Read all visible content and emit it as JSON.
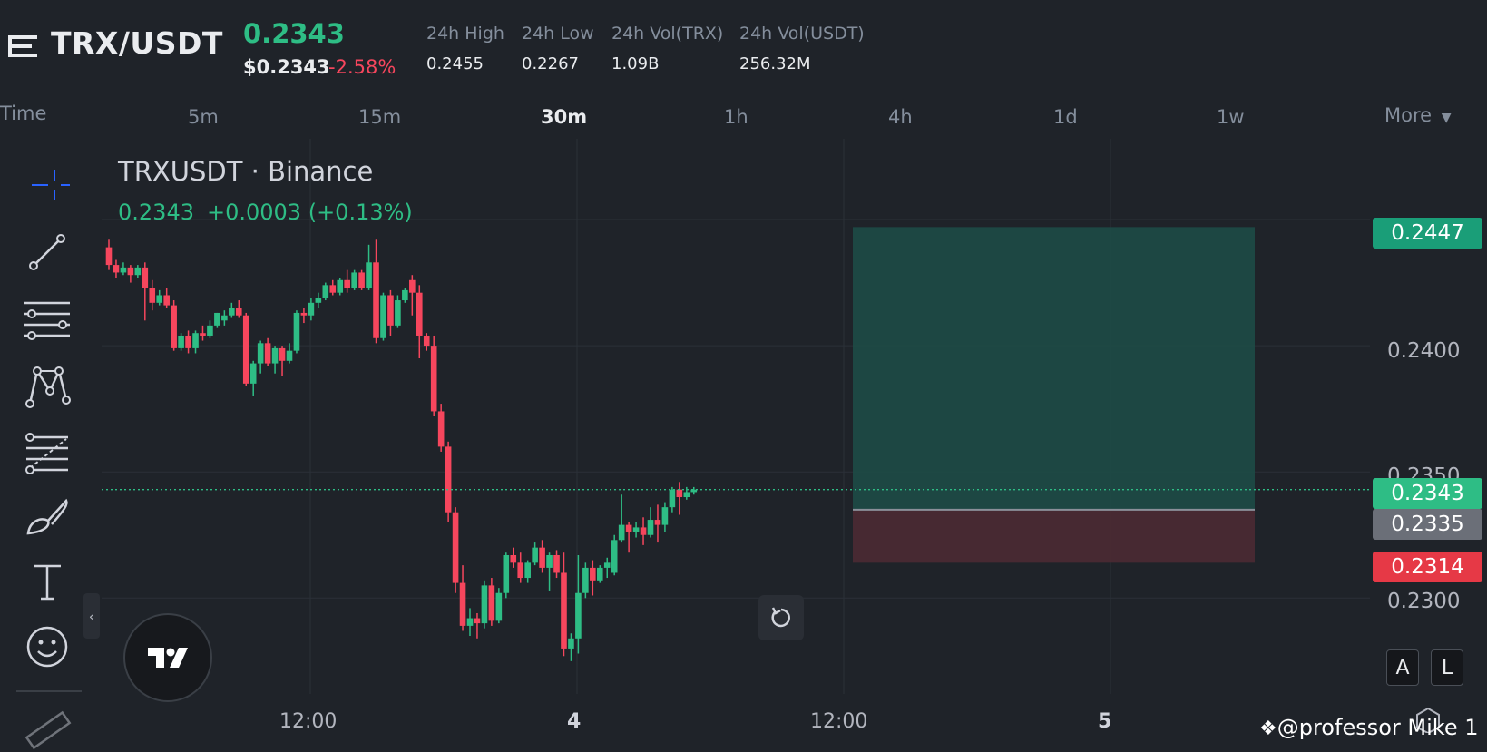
{
  "header": {
    "pair": "TRX/USDT",
    "last_price": "0.2343",
    "usd_price": "$0.2343",
    "change_pct": "-2.58%",
    "stats": [
      {
        "label": "24h High",
        "value": "0.2455"
      },
      {
        "label": "24h Low",
        "value": "0.2267"
      },
      {
        "label": "24h Vol(TRX)",
        "value": "1.09B"
      },
      {
        "label": "24h Vol(USDT)",
        "value": "256.32M"
      }
    ]
  },
  "timeframes": {
    "time_label": "Time",
    "items": [
      "5m",
      "15m",
      "30m",
      "1h",
      "4h",
      "1d",
      "1w"
    ],
    "active": "30m",
    "more_label": "More"
  },
  "chart": {
    "symbol_line": "TRXUSDT · Binance",
    "ohlc_value": "0.2343",
    "ohlc_change": "+0.0003 (+0.13%)",
    "price_tags": {
      "target": "0.2447",
      "current": "0.2343",
      "entry": "0.2335",
      "stop": "0.2314"
    },
    "y_labels": [
      "0.2400",
      "0.2350",
      "0.2300"
    ],
    "x_labels": [
      "12:00",
      "4",
      "12:00",
      "5"
    ],
    "auto_button": "A",
    "log_button": "L",
    "watermark": "@professor Mike 1",
    "colors": {
      "up": "#2ebd85",
      "down": "#f6465d",
      "target_zone": "#1e4a45",
      "stop_zone": "#4a2a33"
    }
  },
  "chart_data": {
    "type": "candlestick",
    "title": "TRXUSDT · Binance",
    "x_labels": [
      "12:00",
      "4",
      "12:00",
      "5"
    ],
    "y_ticks": [
      0.23,
      0.235,
      0.24
    ],
    "ylim": [
      0.2262,
      0.2482
    ],
    "candles": [
      [
        0.2439,
        0.2432,
        0.2442,
        0.243
      ],
      [
        0.2432,
        0.2429,
        0.2434,
        0.2427
      ],
      [
        0.2429,
        0.2431,
        0.2433,
        0.2428
      ],
      [
        0.2431,
        0.2428,
        0.2432,
        0.2425
      ],
      [
        0.2428,
        0.2431,
        0.2432,
        0.2427
      ],
      [
        0.2431,
        0.2423,
        0.2433,
        0.241
      ],
      [
        0.2423,
        0.2417,
        0.2426,
        0.2414
      ],
      [
        0.2417,
        0.242,
        0.2422,
        0.2416
      ],
      [
        0.242,
        0.2416,
        0.2423,
        0.2415
      ],
      [
        0.2416,
        0.2399,
        0.2418,
        0.2398
      ],
      [
        0.2399,
        0.2404,
        0.2405,
        0.2398
      ],
      [
        0.2404,
        0.2399,
        0.2406,
        0.2397
      ],
      [
        0.2399,
        0.2405,
        0.2406,
        0.2397
      ],
      [
        0.2405,
        0.2404,
        0.2408,
        0.2402
      ],
      [
        0.2404,
        0.2408,
        0.241,
        0.2403
      ],
      [
        0.2408,
        0.2413,
        0.2413,
        0.2407
      ],
      [
        0.241,
        0.2412,
        0.2414,
        0.2408
      ],
      [
        0.2412,
        0.2415,
        0.2417,
        0.2411
      ],
      [
        0.2415,
        0.2412,
        0.2418,
        0.2411
      ],
      [
        0.2412,
        0.2385,
        0.2413,
        0.2384
      ],
      [
        0.2385,
        0.2393,
        0.2394,
        0.238
      ],
      [
        0.2393,
        0.2401,
        0.2402,
        0.2389
      ],
      [
        0.2401,
        0.2393,
        0.2403,
        0.2392
      ],
      [
        0.2393,
        0.2399,
        0.24,
        0.2389
      ],
      [
        0.2399,
        0.2394,
        0.24,
        0.2388
      ],
      [
        0.2394,
        0.2398,
        0.2401,
        0.2393
      ],
      [
        0.2398,
        0.2413,
        0.2414,
        0.2397
      ],
      [
        0.2413,
        0.2412,
        0.2415,
        0.2409
      ],
      [
        0.2412,
        0.2417,
        0.2419,
        0.241
      ],
      [
        0.2417,
        0.2419,
        0.2421,
        0.2415
      ],
      [
        0.2419,
        0.2424,
        0.2425,
        0.2418
      ],
      [
        0.2424,
        0.2421,
        0.2426,
        0.242
      ],
      [
        0.2421,
        0.2426,
        0.2427,
        0.242
      ],
      [
        0.2426,
        0.2423,
        0.243,
        0.2421
      ],
      [
        0.2423,
        0.2429,
        0.243,
        0.2422
      ],
      [
        0.2429,
        0.2423,
        0.243,
        0.2422
      ],
      [
        0.2423,
        0.2433,
        0.244,
        0.2422
      ],
      [
        0.2433,
        0.2403,
        0.2442,
        0.2401
      ],
      [
        0.2403,
        0.242,
        0.2421,
        0.2402
      ],
      [
        0.242,
        0.2408,
        0.2422,
        0.2404
      ],
      [
        0.2408,
        0.2418,
        0.242,
        0.2407
      ],
      [
        0.2418,
        0.2422,
        0.2423,
        0.2417
      ],
      [
        0.2426,
        0.2421,
        0.2428,
        0.2412
      ],
      [
        0.2421,
        0.2404,
        0.2424,
        0.2395
      ],
      [
        0.2404,
        0.24,
        0.2405,
        0.2398
      ],
      [
        0.24,
        0.2374,
        0.2404,
        0.2372
      ],
      [
        0.2374,
        0.236,
        0.2377,
        0.2358
      ],
      [
        0.236,
        0.2334,
        0.2362,
        0.233
      ],
      [
        0.2334,
        0.2306,
        0.2336,
        0.2302
      ],
      [
        0.2306,
        0.2289,
        0.2313,
        0.2287
      ],
      [
        0.2289,
        0.2292,
        0.2296,
        0.2285
      ],
      [
        0.2292,
        0.229,
        0.2294,
        0.2284
      ],
      [
        0.229,
        0.2305,
        0.2307,
        0.2288
      ],
      [
        0.2305,
        0.2291,
        0.2308,
        0.2289
      ],
      [
        0.2291,
        0.2302,
        0.2304,
        0.229
      ],
      [
        0.2302,
        0.2317,
        0.2318,
        0.23
      ],
      [
        0.2317,
        0.2314,
        0.232,
        0.2312
      ],
      [
        0.2314,
        0.2308,
        0.2318,
        0.2306
      ],
      [
        0.2308,
        0.2314,
        0.2315,
        0.2306
      ],
      [
        0.2314,
        0.232,
        0.2322,
        0.2313
      ],
      [
        0.232,
        0.2312,
        0.2323,
        0.231
      ],
      [
        0.2312,
        0.2317,
        0.2318,
        0.2303
      ],
      [
        0.2317,
        0.231,
        0.2319,
        0.2308
      ],
      [
        0.231,
        0.228,
        0.2318,
        0.2277
      ],
      [
        0.228,
        0.2284,
        0.2286,
        0.2275
      ],
      [
        0.2284,
        0.2302,
        0.2317,
        0.2278
      ],
      [
        0.2302,
        0.2312,
        0.2314,
        0.23
      ],
      [
        0.2312,
        0.2307,
        0.2315,
        0.2301
      ],
      [
        0.2307,
        0.2312,
        0.2313,
        0.2306
      ],
      [
        0.2312,
        0.2314,
        0.2316,
        0.2308
      ],
      [
        0.231,
        0.2323,
        0.2325,
        0.2309
      ],
      [
        0.2323,
        0.2329,
        0.2341,
        0.2322
      ],
      [
        0.2329,
        0.2326,
        0.233,
        0.2318
      ],
      [
        0.2326,
        0.2328,
        0.233,
        0.2324
      ],
      [
        0.2328,
        0.2325,
        0.2332,
        0.2321
      ],
      [
        0.2325,
        0.2331,
        0.2336,
        0.2324
      ],
      [
        0.2331,
        0.2329,
        0.2337,
        0.2322
      ],
      [
        0.2329,
        0.2336,
        0.2338,
        0.2326
      ],
      [
        0.2336,
        0.2343,
        0.2344,
        0.2334
      ],
      [
        0.2343,
        0.234,
        0.2346,
        0.2333
      ],
      [
        0.234,
        0.2342,
        0.2344,
        0.2339
      ],
      [
        0.2342,
        0.2343,
        0.2344,
        0.2341
      ]
    ],
    "position": {
      "target": 0.2447,
      "entry": 0.2335,
      "stop": 0.2314,
      "current": 0.2343
    }
  }
}
